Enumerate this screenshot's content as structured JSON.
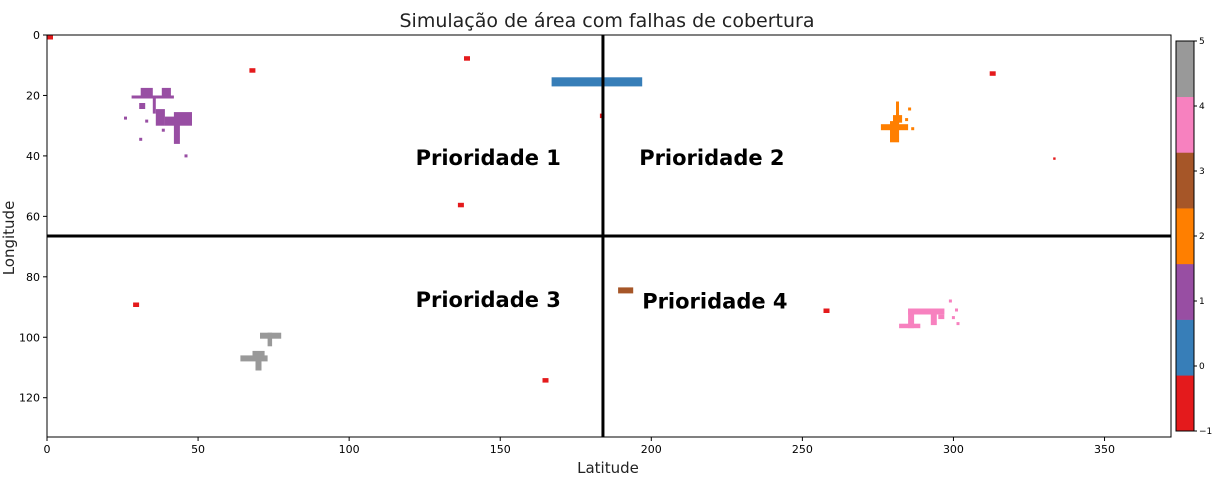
{
  "chart_data": {
    "type": "heatmap",
    "title": "Simulação de área com falhas de cobertura",
    "xlabel": "Latitude",
    "ylabel": "Longitude",
    "xlim": [
      0,
      372
    ],
    "ylim": [
      133,
      0
    ],
    "x_ticks": [
      0,
      50,
      100,
      150,
      200,
      250,
      300,
      350
    ],
    "y_ticks": [
      0,
      20,
      40,
      60,
      80,
      100,
      120
    ],
    "grid": false,
    "colorbar": {
      "range": [
        -1,
        5
      ],
      "ticks": [
        -1,
        0,
        1,
        2,
        3,
        4,
        5
      ],
      "colors": [
        "#e41a1c",
        "#377eb8",
        "#984ea3",
        "#ff7f00",
        "#a65628",
        "#f781bf",
        "#999999"
      ]
    },
    "dividers": {
      "x": 184,
      "y": 66.5
    },
    "quadrant_labels": [
      {
        "text": "Prioridade 1",
        "x": 122,
        "y": 43
      },
      {
        "text": "Prioridade 2",
        "x": 196,
        "y": 43
      },
      {
        "text": "Prioridade 3",
        "x": 122,
        "y": 90
      },
      {
        "text": "Prioridade 4",
        "x": 197,
        "y": 90.5
      }
    ],
    "cells": [
      {
        "value": -1,
        "x": 0,
        "y": 0,
        "w": 2,
        "h": 1.5
      },
      {
        "value": -1,
        "x": 67,
        "y": 11,
        "w": 2,
        "h": 1.5
      },
      {
        "value": -1,
        "x": 138,
        "y": 7,
        "w": 2,
        "h": 1.5
      },
      {
        "value": -1,
        "x": 183,
        "y": 26,
        "w": 1.5,
        "h": 1.5
      },
      {
        "value": -1,
        "x": 136,
        "y": 55.5,
        "w": 2,
        "h": 1.5
      },
      {
        "value": -1,
        "x": 312,
        "y": 12,
        "w": 2,
        "h": 1.5
      },
      {
        "value": -1,
        "x": 333,
        "y": 40.5,
        "w": 0.8,
        "h": 0.8
      },
      {
        "value": -1,
        "x": 28.5,
        "y": 88.5,
        "w": 2,
        "h": 1.5
      },
      {
        "value": -1,
        "x": 164,
        "y": 113.5,
        "w": 2,
        "h": 1.5
      },
      {
        "value": -1,
        "x": 257,
        "y": 90.5,
        "w": 2,
        "h": 1.5
      },
      {
        "value": 0,
        "x": 167,
        "y": 14,
        "w": 30,
        "h": 3
      },
      {
        "value": 1,
        "x": 28,
        "y": 20,
        "w": 14,
        "h": 1
      },
      {
        "value": 1,
        "x": 31,
        "y": 17.5,
        "w": 4,
        "h": 3.5
      },
      {
        "value": 1,
        "x": 38,
        "y": 17.5,
        "w": 3,
        "h": 3.5
      },
      {
        "value": 1,
        "x": 30.5,
        "y": 22.5,
        "w": 2,
        "h": 2
      },
      {
        "value": 1,
        "x": 35,
        "y": 21,
        "w": 1,
        "h": 5
      },
      {
        "value": 1,
        "x": 36,
        "y": 24.5,
        "w": 3,
        "h": 5.5
      },
      {
        "value": 1,
        "x": 39,
        "y": 27,
        "w": 9,
        "h": 3
      },
      {
        "value": 1,
        "x": 42,
        "y": 25.5,
        "w": 6,
        "h": 2
      },
      {
        "value": 1,
        "x": 42,
        "y": 29,
        "w": 2,
        "h": 7
      },
      {
        "value": 1,
        "x": 25.5,
        "y": 27,
        "w": 1,
        "h": 1
      },
      {
        "value": 1,
        "x": 32.5,
        "y": 28,
        "w": 1,
        "h": 1
      },
      {
        "value": 1,
        "x": 38,
        "y": 31,
        "w": 1,
        "h": 1
      },
      {
        "value": 1,
        "x": 30.5,
        "y": 34,
        "w": 1,
        "h": 1
      },
      {
        "value": 1,
        "x": 45.5,
        "y": 39.5,
        "w": 1,
        "h": 1
      },
      {
        "value": 2,
        "x": 281,
        "y": 22,
        "w": 1,
        "h": 5
      },
      {
        "value": 2,
        "x": 280,
        "y": 26.5,
        "w": 3,
        "h": 2.5
      },
      {
        "value": 2,
        "x": 276,
        "y": 29.5,
        "w": 9,
        "h": 2
      },
      {
        "value": 2,
        "x": 279,
        "y": 28.5,
        "w": 3,
        "h": 7
      },
      {
        "value": 2,
        "x": 285,
        "y": 24,
        "w": 1,
        "h": 1
      },
      {
        "value": 2,
        "x": 284,
        "y": 27.5,
        "w": 1,
        "h": 1
      },
      {
        "value": 2,
        "x": 286,
        "y": 30.5,
        "w": 1,
        "h": 1
      },
      {
        "value": 3,
        "x": 189,
        "y": 83.5,
        "w": 5,
        "h": 2
      },
      {
        "value": 4,
        "x": 282,
        "y": 95.5,
        "w": 7,
        "h": 1.5
      },
      {
        "value": 4,
        "x": 285,
        "y": 90.5,
        "w": 2,
        "h": 6.5
      },
      {
        "value": 4,
        "x": 285,
        "y": 90.5,
        "w": 12,
        "h": 2
      },
      {
        "value": 4,
        "x": 292.5,
        "y": 90.5,
        "w": 2,
        "h": 5.5
      },
      {
        "value": 4,
        "x": 295,
        "y": 92.5,
        "w": 2,
        "h": 1.5
      },
      {
        "value": 4,
        "x": 298.5,
        "y": 87.5,
        "w": 1,
        "h": 1
      },
      {
        "value": 4,
        "x": 300.5,
        "y": 90.5,
        "w": 1,
        "h": 1
      },
      {
        "value": 4,
        "x": 299.5,
        "y": 93,
        "w": 1,
        "h": 1
      },
      {
        "value": 4,
        "x": 301,
        "y": 95,
        "w": 1,
        "h": 1
      },
      {
        "value": 5,
        "x": 70.5,
        "y": 98.5,
        "w": 7,
        "h": 2
      },
      {
        "value": 5,
        "x": 73,
        "y": 98.5,
        "w": 1.5,
        "h": 4.5
      },
      {
        "value": 5,
        "x": 64,
        "y": 106,
        "w": 9,
        "h": 2
      },
      {
        "value": 5,
        "x": 68,
        "y": 104.5,
        "w": 4,
        "h": 3
      },
      {
        "value": 5,
        "x": 69,
        "y": 107,
        "w": 2,
        "h": 4
      }
    ]
  }
}
